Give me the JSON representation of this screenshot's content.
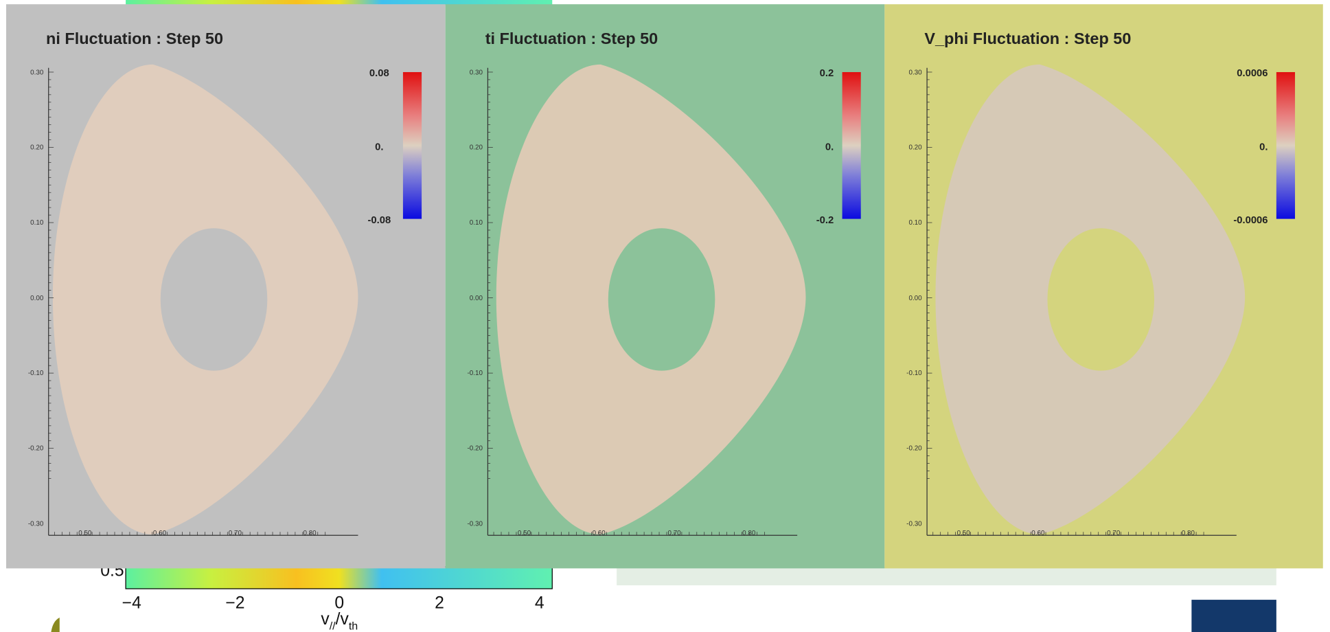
{
  "background": {
    "y_tick": "0.5",
    "x_ticks": [
      "−4",
      "−2",
      "0",
      "2",
      "4"
    ],
    "x_label": "v",
    "x_label_sub1": "//",
    "x_label_mid": "/v",
    "x_label_sub2": "th"
  },
  "axes": {
    "y_ticks": [
      "0.30",
      "0.20",
      "0.10",
      "0.00",
      "-0.10",
      "-0.20",
      "-0.30"
    ],
    "x_ticks": [
      "0.50",
      "0.60",
      "0.70",
      "0.80"
    ]
  },
  "panels": [
    {
      "title": "ni Fluctuation :  Step 50",
      "colorbar": [
        "0.08",
        "0.",
        "-0.08"
      ]
    },
    {
      "title": "ti Fluctuation :  Step 50",
      "colorbar": [
        "0.2",
        "0.",
        "-0.2"
      ]
    },
    {
      "title": "V_phi Fluctuation :  Step 50",
      "colorbar": [
        "0.0006",
        "0.",
        "-0.0006"
      ]
    }
  ]
}
